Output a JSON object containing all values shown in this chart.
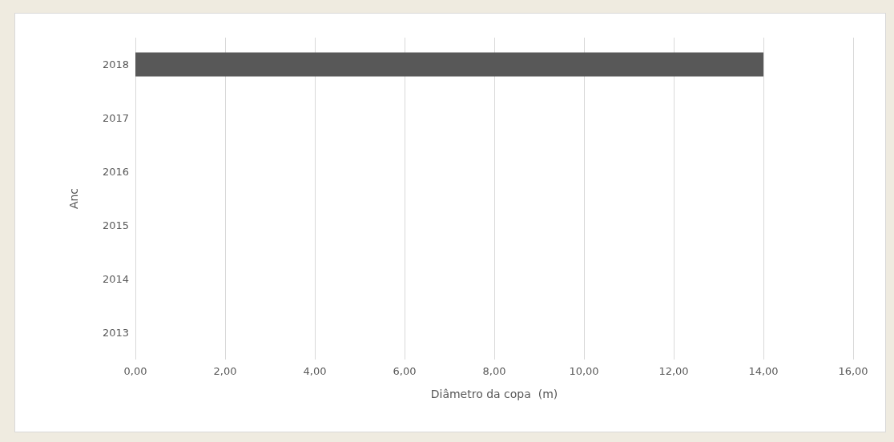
{
  "chart_data": {
    "type": "bar",
    "orientation": "horizontal",
    "ylabel": "Anc",
    "xlabel": "Diâmetro da copa  (m)",
    "categories": [
      "2018",
      "2017",
      "2016",
      "2015",
      "2014",
      "2013"
    ],
    "values": [
      14,
      null,
      null,
      null,
      null,
      null
    ],
    "color": "#585858",
    "xlim": [
      0,
      16
    ],
    "xticks": [
      {
        "value": 0,
        "label": "0,00"
      },
      {
        "value": 2,
        "label": "2,00"
      },
      {
        "value": 4,
        "label": "4,00"
      },
      {
        "value": 6,
        "label": "6,00"
      },
      {
        "value": 8,
        "label": "8,00"
      },
      {
        "value": 10,
        "label": "10,00"
      },
      {
        "value": 12,
        "label": "12,00"
      },
      {
        "value": 14,
        "label": "14,00"
      },
      {
        "value": 16,
        "label": "16,00"
      }
    ],
    "grid": "x"
  }
}
